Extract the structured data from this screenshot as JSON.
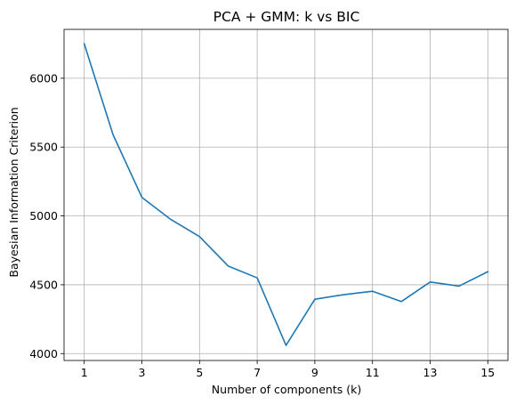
{
  "chart_data": {
    "type": "line",
    "title": "PCA + GMM: k vs BIC",
    "xlabel": "Number of components (k)",
    "ylabel": "Bayesian Information Criterion",
    "xlim": [
      0.3,
      15.7
    ],
    "ylim": [
      3950,
      6355
    ],
    "x_ticks": [
      1,
      3,
      5,
      7,
      9,
      11,
      13,
      15
    ],
    "x_tick_labels": [
      "1",
      "3",
      "5",
      "7",
      "9",
      "11",
      "13",
      "15"
    ],
    "y_ticks": [
      4000,
      4500,
      5000,
      5500,
      6000
    ],
    "y_tick_labels": [
      "4000",
      "4500",
      "5000",
      "5500",
      "6000"
    ],
    "grid": true,
    "legend": "none",
    "colors": {
      "line": "#1f77b4",
      "grid": "#b0b0b0",
      "axes": "#000000"
    },
    "series": [
      {
        "x": [
          1,
          2,
          3,
          4,
          5,
          6,
          7,
          8,
          9,
          10,
          11,
          12,
          13,
          14,
          15
        ],
        "values": [
          6250,
          5590,
          5135,
          4975,
          4850,
          4635,
          4550,
          4060,
          4395,
          4428,
          4453,
          4378,
          4520,
          4490,
          4595
        ]
      }
    ]
  }
}
